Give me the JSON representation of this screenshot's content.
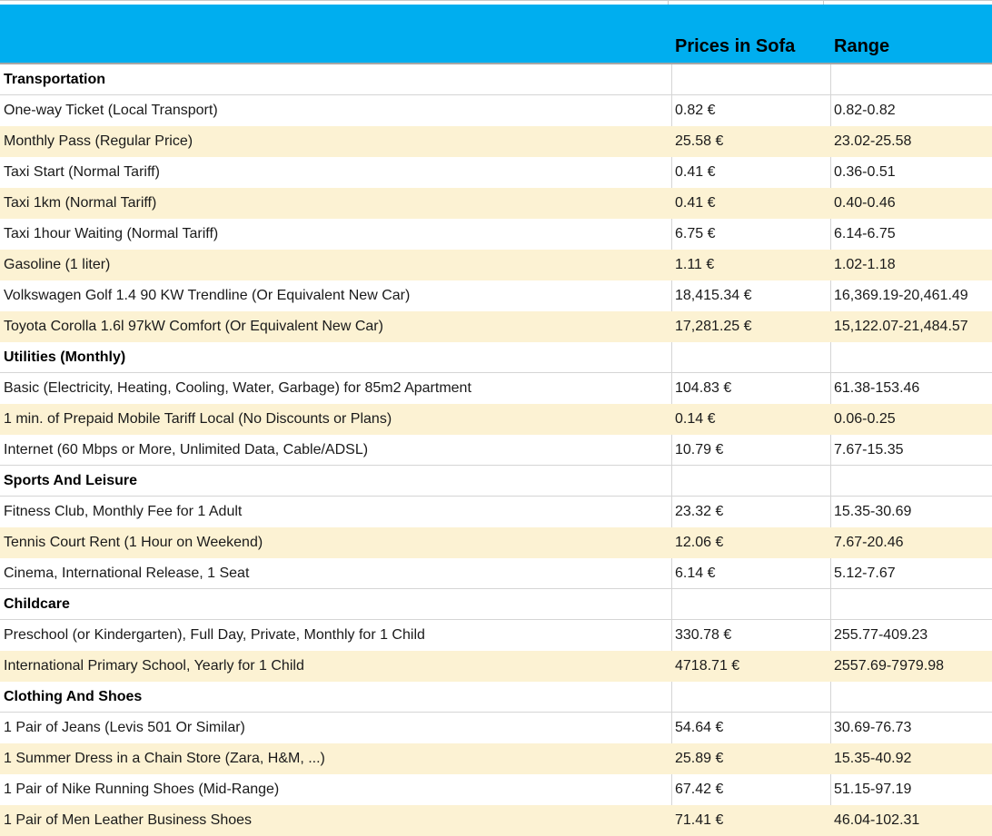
{
  "header": {
    "col_price": "Prices in Sofa",
    "col_range": "Range"
  },
  "colors": {
    "header_bg": "#00AEEF",
    "stripe_bg": "#FCF2D3",
    "grid_line": "#D5D5D5",
    "header_divider": "#A6A6A6",
    "text": "#1A1A1A"
  },
  "rows": [
    {
      "type": "category",
      "label": "Transportation",
      "price": "",
      "range": ""
    },
    {
      "type": "item",
      "label": "One-way Ticket (Local Transport)",
      "price": "0.82 €",
      "range": "0.82-0.82"
    },
    {
      "type": "item",
      "label": "Monthly Pass (Regular Price)",
      "price": "25.58 €",
      "range": "23.02-25.58"
    },
    {
      "type": "item",
      "label": "Taxi Start (Normal Tariff)",
      "price": "0.41 €",
      "range": "0.36-0.51"
    },
    {
      "type": "item",
      "label": "Taxi 1km (Normal Tariff)",
      "price": "0.41 €",
      "range": "0.40-0.46"
    },
    {
      "type": "item",
      "label": "Taxi 1hour Waiting (Normal Tariff)",
      "price": "6.75 €",
      "range": "6.14-6.75"
    },
    {
      "type": "item",
      "label": "Gasoline (1 liter)",
      "price": "1.11 €",
      "range": "1.02-1.18"
    },
    {
      "type": "item",
      "label": "Volkswagen Golf 1.4 90 KW Trendline (Or Equivalent New Car)",
      "price": "18,415.34 €",
      "range": "16,369.19-20,461.49"
    },
    {
      "type": "item",
      "label": "Toyota Corolla 1.6l 97kW Comfort (Or Equivalent New Car)",
      "price": "17,281.25 €",
      "range": "15,122.07-21,484.57"
    },
    {
      "type": "category",
      "label": "Utilities (Monthly)",
      "price": "",
      "range": ""
    },
    {
      "type": "item",
      "label": "Basic (Electricity, Heating, Cooling, Water, Garbage) for 85m2 Apartment",
      "price": "104.83 €",
      "range": "61.38-153.46"
    },
    {
      "type": "item",
      "label": "1 min. of Prepaid Mobile Tariff Local (No Discounts or Plans)",
      "price": "0.14 €",
      "range": "0.06-0.25"
    },
    {
      "type": "item",
      "label": "Internet (60 Mbps or More, Unlimited Data, Cable/ADSL)",
      "price": "10.79 €",
      "range": "7.67-15.35"
    },
    {
      "type": "category",
      "label": "Sports And Leisure",
      "price": "",
      "range": ""
    },
    {
      "type": "item",
      "label": "Fitness Club, Monthly Fee for 1 Adult",
      "price": "23.32 €",
      "range": "15.35-30.69"
    },
    {
      "type": "item",
      "label": "Tennis Court Rent (1 Hour on Weekend)",
      "price": "12.06 €",
      "range": "7.67-20.46"
    },
    {
      "type": "item",
      "label": "Cinema, International Release, 1 Seat",
      "price": "6.14 €",
      "range": "5.12-7.67"
    },
    {
      "type": "category",
      "label": "Childcare",
      "price": "",
      "range": ""
    },
    {
      "type": "item",
      "label": "Preschool (or Kindergarten), Full Day, Private, Monthly for 1 Child",
      "price": "330.78 €",
      "range": "255.77-409.23"
    },
    {
      "type": "item",
      "label": "International Primary School, Yearly for 1 Child",
      "price": "4718.71 €",
      "range": "2557.69-7979.98"
    },
    {
      "type": "category",
      "label": "Clothing And Shoes",
      "price": "",
      "range": ""
    },
    {
      "type": "item",
      "label": "1 Pair of Jeans (Levis 501 Or Similar)",
      "price": "54.64 €",
      "range": "30.69-76.73"
    },
    {
      "type": "item",
      "label": "1 Summer Dress in a Chain Store (Zara, H&M, ...)",
      "price": "25.89 €",
      "range": "15.35-40.92"
    },
    {
      "type": "item",
      "label": "1 Pair of Nike Running Shoes (Mid-Range)",
      "price": "67.42 €",
      "range": "51.15-97.19"
    },
    {
      "type": "item",
      "label": "1 Pair of Men Leather Business Shoes",
      "price": "71.41 €",
      "range": "46.04-102.31"
    }
  ]
}
